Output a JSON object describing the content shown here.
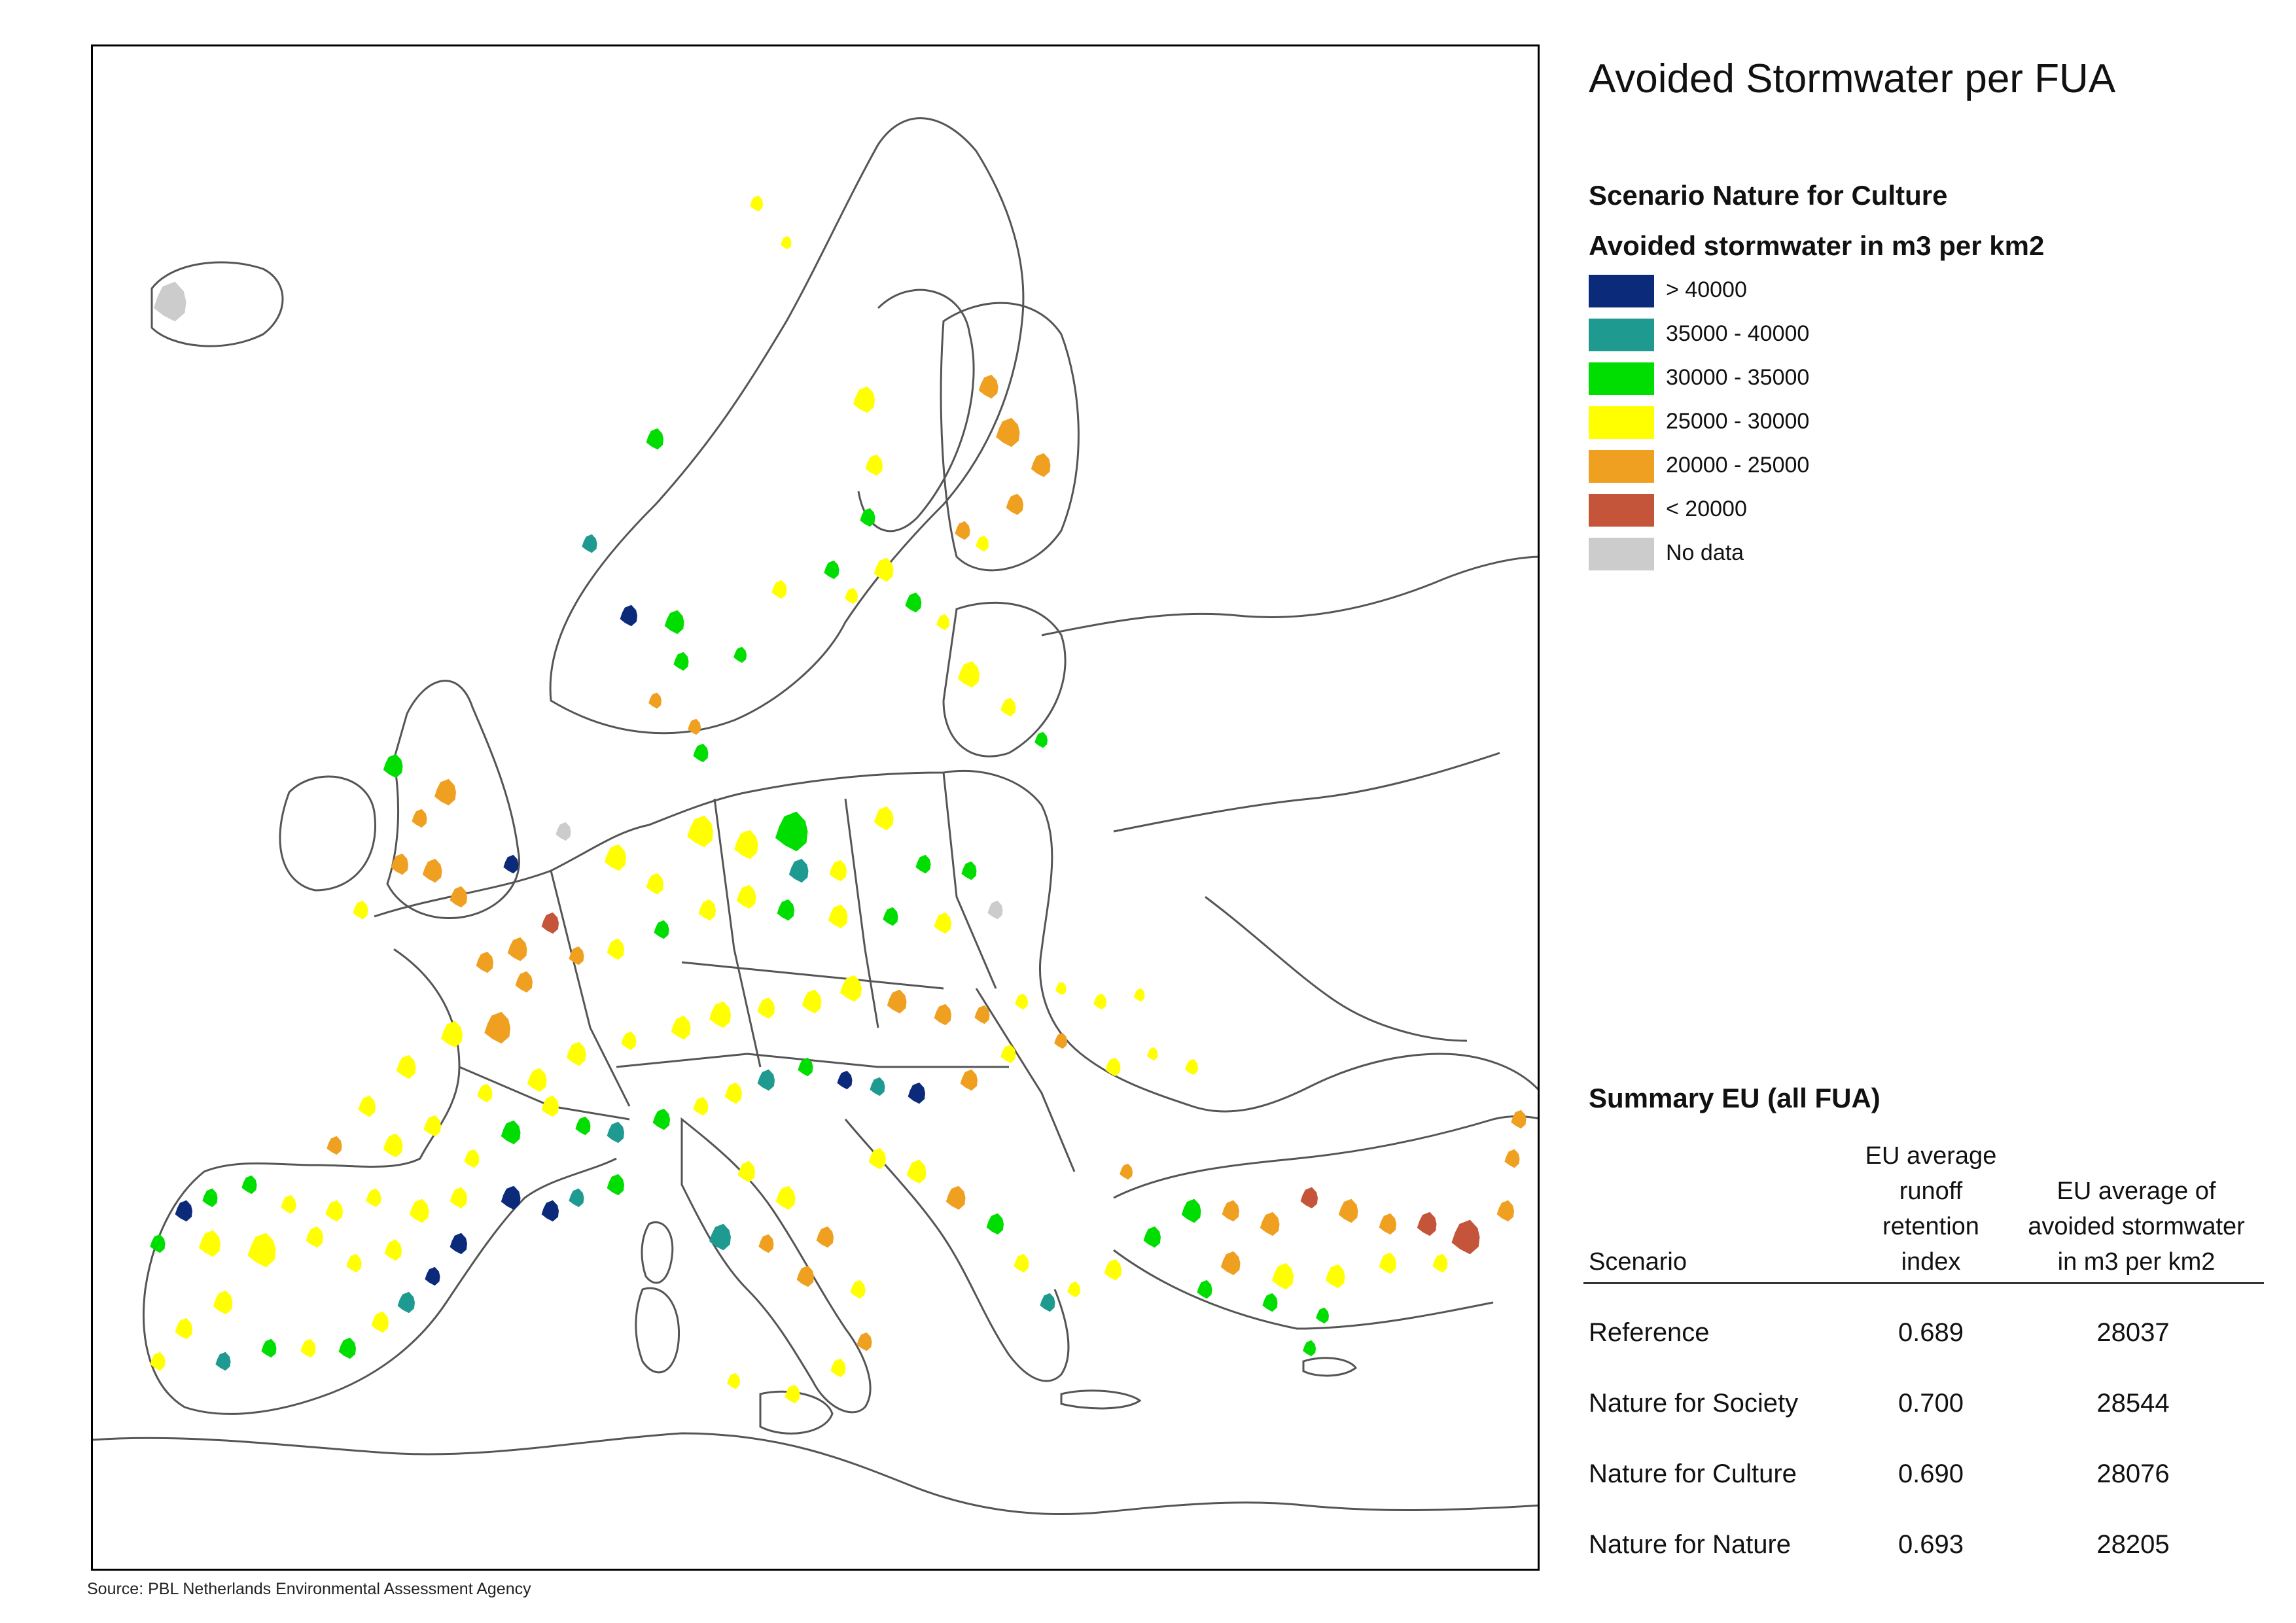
{
  "title": "Avoided Stormwater per FUA",
  "source": "Source: PBL Netherlands Environmental Assessment Agency",
  "scenario_heading": "Scenario Nature for Culture",
  "legend": {
    "title": "Avoided stormwater in m3 per km2",
    "items": [
      {
        "label": "> 40000",
        "color": "#0c2a7a"
      },
      {
        "label": "35000 - 40000",
        "color": "#1f9a90"
      },
      {
        "label": "30000 - 35000",
        "color": "#00dd00"
      },
      {
        "label": "25000 - 30000",
        "color": "#ffff00"
      },
      {
        "label": "20000 - 25000",
        "color": "#f0a020"
      },
      {
        "label": "< 20000",
        "color": "#c4553a"
      },
      {
        "label": "No data",
        "color": "#cccccc"
      }
    ]
  },
  "summary": {
    "title": "Summary EU (all FUA)",
    "headers": {
      "scenario": "Scenario",
      "index": [
        "EU average",
        "runoff",
        "retention",
        "index"
      ],
      "value": [
        "EU average of",
        "avoided stormwater",
        "in m3 per km2"
      ]
    },
    "rows": [
      {
        "scenario": "Reference",
        "index": "0.689",
        "value": "28037"
      },
      {
        "scenario": "Nature for Society",
        "index": "0.700",
        "value": "28544"
      },
      {
        "scenario": "Nature for Culture",
        "index": "0.690",
        "value": "28076"
      },
      {
        "scenario": "Nature for Nature",
        "index": "0.693",
        "value": "28205"
      }
    ]
  }
}
